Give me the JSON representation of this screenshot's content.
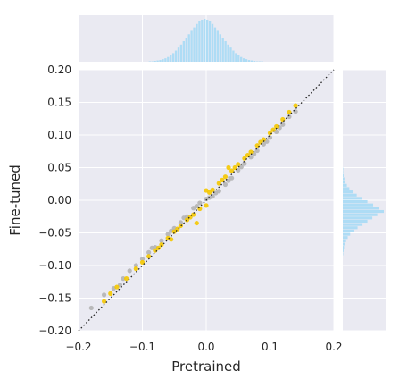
{
  "chart_data": {
    "type": "scatter",
    "xlabel": "Pretrained",
    "ylabel": "Fine-tuned",
    "xlim": [
      -0.2,
      0.2
    ],
    "ylim": [
      -0.2,
      0.2
    ],
    "x_ticks": [
      -0.2,
      -0.1,
      0.0,
      0.1,
      0.2
    ],
    "x_tick_labels": [
      "−0.2",
      "−0.1",
      "0.0",
      "0.1",
      "0.2"
    ],
    "y_ticks": [
      -0.2,
      -0.15,
      -0.1,
      -0.05,
      0.0,
      0.05,
      0.1,
      0.15,
      0.2
    ],
    "y_tick_labels": [
      "−0.20",
      "−0.15",
      "−0.10",
      "−0.05",
      "0.00",
      "0.05",
      "0.10",
      "0.15",
      "0.20"
    ],
    "grid": true,
    "reference_line": {
      "from": [
        -0.2,
        -0.2
      ],
      "to": [
        0.2,
        0.2
      ],
      "style": "dotted",
      "color": "#222222"
    },
    "series": [
      {
        "color": "#b4b4b4",
        "points": [
          [
            -0.16,
            -0.145
          ],
          [
            -0.145,
            -0.135
          ],
          [
            -0.13,
            -0.12
          ],
          [
            -0.12,
            -0.108
          ],
          [
            -0.11,
            -0.1
          ],
          [
            -0.1,
            -0.09
          ],
          [
            -0.09,
            -0.08
          ],
          [
            -0.08,
            -0.072
          ],
          [
            -0.07,
            -0.062
          ],
          [
            -0.06,
            -0.052
          ],
          [
            -0.05,
            -0.043
          ],
          [
            -0.04,
            -0.034
          ],
          [
            -0.03,
            -0.025
          ],
          [
            -0.02,
            -0.012
          ],
          [
            -0.01,
            -0.004
          ],
          [
            0.0,
            0.002
          ],
          [
            0.01,
            0.006
          ],
          [
            0.02,
            0.014
          ],
          [
            0.03,
            0.024
          ],
          [
            0.04,
            0.034
          ],
          [
            0.05,
            0.046
          ],
          [
            0.06,
            0.056
          ],
          [
            0.07,
            0.066
          ],
          [
            0.08,
            0.076
          ],
          [
            0.09,
            0.086
          ],
          [
            0.1,
            0.096
          ],
          [
            0.11,
            0.105
          ],
          [
            0.12,
            0.116
          ],
          [
            0.13,
            0.128
          ],
          [
            -0.135,
            -0.13
          ],
          [
            -0.085,
            -0.073
          ],
          [
            -0.055,
            -0.047
          ],
          [
            -0.035,
            -0.027
          ],
          [
            -0.015,
            -0.009
          ],
          [
            0.005,
            0.004
          ],
          [
            0.015,
            0.011
          ],
          [
            0.035,
            0.03
          ],
          [
            0.055,
            0.051
          ],
          [
            0.075,
            0.071
          ],
          [
            0.095,
            0.09
          ],
          [
            0.115,
            0.111
          ],
          [
            -0.18,
            -0.165
          ],
          [
            0.14,
            0.136
          ]
        ]
      },
      {
        "color": "#f5c800",
        "points": [
          [
            -0.15,
            -0.143
          ],
          [
            -0.14,
            -0.133
          ],
          [
            -0.125,
            -0.12
          ],
          [
            -0.11,
            -0.105
          ],
          [
            -0.1,
            -0.095
          ],
          [
            -0.09,
            -0.086
          ],
          [
            -0.08,
            -0.077
          ],
          [
            -0.07,
            -0.068
          ],
          [
            -0.06,
            -0.058
          ],
          [
            -0.05,
            -0.048
          ],
          [
            -0.04,
            -0.039
          ],
          [
            -0.03,
            -0.03
          ],
          [
            -0.02,
            -0.022
          ],
          [
            -0.01,
            -0.013
          ],
          [
            0.0,
            -0.008
          ],
          [
            0.005,
            0.012
          ],
          [
            0.01,
            0.016
          ],
          [
            0.02,
            0.026
          ],
          [
            0.03,
            0.036
          ],
          [
            0.04,
            0.045
          ],
          [
            0.05,
            0.055
          ],
          [
            0.06,
            0.064
          ],
          [
            0.07,
            0.074
          ],
          [
            0.08,
            0.084
          ],
          [
            0.09,
            0.093
          ],
          [
            0.1,
            0.103
          ],
          [
            0.11,
            0.113
          ],
          [
            0.12,
            0.124
          ],
          [
            0.13,
            0.135
          ],
          [
            -0.075,
            -0.073
          ],
          [
            -0.045,
            -0.044
          ],
          [
            -0.025,
            -0.026
          ],
          [
            0.025,
            0.031
          ],
          [
            0.045,
            0.05
          ],
          [
            0.065,
            0.069
          ],
          [
            0.085,
            0.089
          ],
          [
            0.105,
            0.108
          ],
          [
            -0.16,
            -0.155
          ],
          [
            0.035,
            0.05
          ],
          [
            0.0,
            0.015
          ],
          [
            -0.015,
            -0.035
          ],
          [
            0.14,
            0.145
          ],
          [
            -0.055,
            -0.06
          ]
        ]
      }
    ],
    "marginal_x_hist": {
      "color": "#aedcf5",
      "bin_edges": [
        -0.2,
        0.2
      ],
      "counts": [
        1,
        1,
        2,
        3,
        4,
        6,
        8,
        11,
        15,
        20,
        26,
        33,
        40,
        48,
        56,
        64,
        72,
        80,
        88,
        94,
        98,
        100,
        98,
        94,
        88,
        80,
        72,
        64,
        56,
        48,
        40,
        33,
        26,
        20,
        15,
        11,
        8,
        6,
        4,
        3,
        2,
        1,
        1,
        1
      ]
    },
    "marginal_y_hist": {
      "color": "#aedcf5",
      "bin_edges": [
        -0.2,
        0.2
      ],
      "counts": [
        0,
        0,
        0,
        0,
        0,
        0,
        0,
        0,
        0,
        0,
        0,
        0,
        0,
        0,
        0,
        0,
        0,
        0,
        0,
        0,
        0,
        0,
        0,
        1,
        2,
        3,
        5,
        8,
        12,
        18,
        26,
        36,
        48,
        60,
        72,
        84,
        100,
        88,
        74,
        60,
        46,
        34,
        24,
        16,
        10,
        6,
        4,
        2,
        1,
        1,
        0,
        0,
        0,
        0,
        0,
        0,
        0,
        0,
        0,
        0,
        0,
        0,
        0,
        0,
        0,
        0,
        0,
        0,
        0,
        0,
        0,
        0,
        0,
        0,
        0,
        0,
        0,
        0,
        0,
        0
      ]
    }
  }
}
